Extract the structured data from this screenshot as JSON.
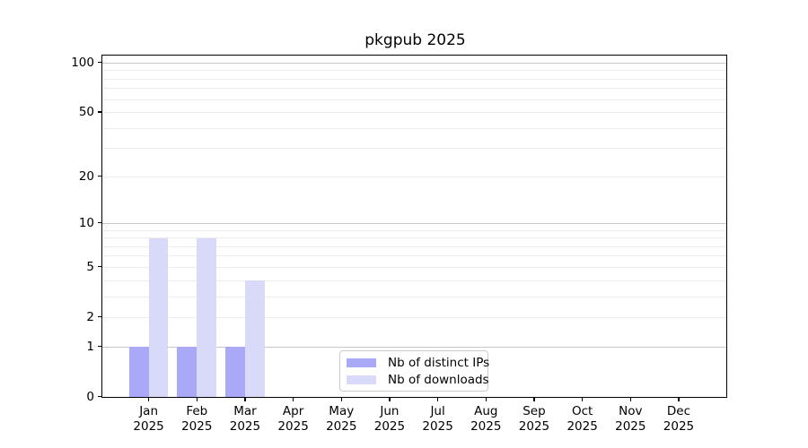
{
  "chart_data": {
    "type": "bar",
    "title": "pkgpub 2025",
    "categories": [
      "Jan",
      "Feb",
      "Mar",
      "Apr",
      "May",
      "Jun",
      "Jul",
      "Aug",
      "Sep",
      "Oct",
      "Nov",
      "Dec"
    ],
    "year_label": "2025",
    "series": [
      {
        "name": "Nb of distinct IPs",
        "color": "#a9a9f7",
        "values": [
          1,
          1,
          1,
          0,
          0,
          0,
          0,
          0,
          0,
          0,
          0,
          0
        ]
      },
      {
        "name": "Nb of downloads",
        "color": "#d9d9fa",
        "values": [
          8,
          8,
          4,
          0,
          0,
          0,
          0,
          0,
          0,
          0,
          0,
          0
        ]
      }
    ],
    "y_axis": {
      "scale": "log1p",
      "ticks": [
        0,
        1,
        2,
        5,
        10,
        20,
        50,
        100
      ],
      "major_gridlines": [
        1,
        10,
        100
      ],
      "minor_gridlines": [
        2,
        3,
        4,
        5,
        6,
        7,
        8,
        9,
        20,
        30,
        40,
        50,
        60,
        70,
        80,
        90
      ],
      "range": [
        0,
        100
      ]
    },
    "legend": {
      "position": "lower-center"
    },
    "grid": true
  },
  "colors": {
    "background": "#ffffff",
    "axis": "#000000",
    "major_grid": "#c6c6c6",
    "minor_grid": "#ececec",
    "legend_border": "#cccccc"
  }
}
